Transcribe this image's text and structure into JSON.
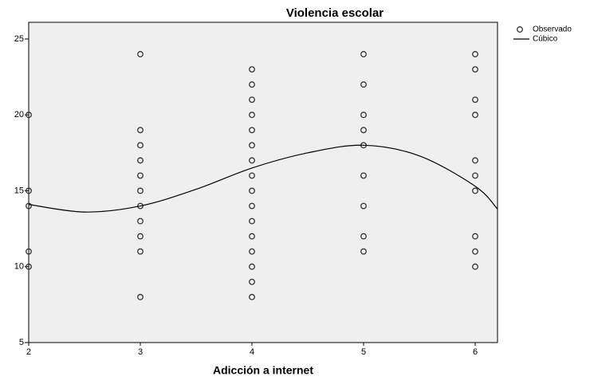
{
  "chart_data": {
    "type": "scatter",
    "title": "Violencia escolar",
    "x_label": "Adicción a internet",
    "xlim": [
      2,
      6.2
    ],
    "ylim": [
      5,
      26.1
    ],
    "xticks": [
      2,
      3,
      4,
      5,
      6
    ],
    "yticks": [
      5,
      10,
      15,
      20,
      25
    ],
    "legend": "upper right outside",
    "series": [
      {
        "name": "Observado",
        "type": "scatter",
        "color": "#333333",
        "x": [
          2,
          2,
          2,
          2,
          2,
          3,
          3,
          3,
          3,
          3,
          3,
          3,
          3,
          3,
          3,
          3,
          4,
          4,
          4,
          4,
          4,
          4,
          4,
          4,
          4,
          4,
          4,
          4,
          4,
          4,
          4,
          4,
          5,
          5,
          5,
          5,
          5,
          5,
          5,
          5,
          5,
          6,
          6,
          6,
          6,
          6,
          6,
          6,
          6,
          6,
          6
        ],
        "values": [
          20,
          15,
          14,
          11,
          10,
          24,
          19,
          18,
          17,
          16,
          15,
          14,
          13,
          12,
          11,
          8,
          23,
          22,
          21,
          20,
          19,
          18,
          17,
          16,
          15,
          14,
          13,
          12,
          11,
          10,
          9,
          8,
          24,
          22,
          20,
          19,
          18,
          16,
          14,
          12,
          11,
          24,
          23,
          21,
          20,
          17,
          16,
          15,
          12,
          11,
          10
        ]
      },
      {
        "name": "Cúbico",
        "type": "line",
        "color": "#000000",
        "x": [
          2,
          2.5,
          3,
          3.5,
          4,
          4.5,
          5,
          5.5,
          6,
          6.2
        ],
        "values": [
          14.1,
          13.6,
          14.0,
          15.1,
          16.5,
          17.5,
          18.0,
          17.3,
          15.3,
          13.8
        ]
      }
    ]
  }
}
